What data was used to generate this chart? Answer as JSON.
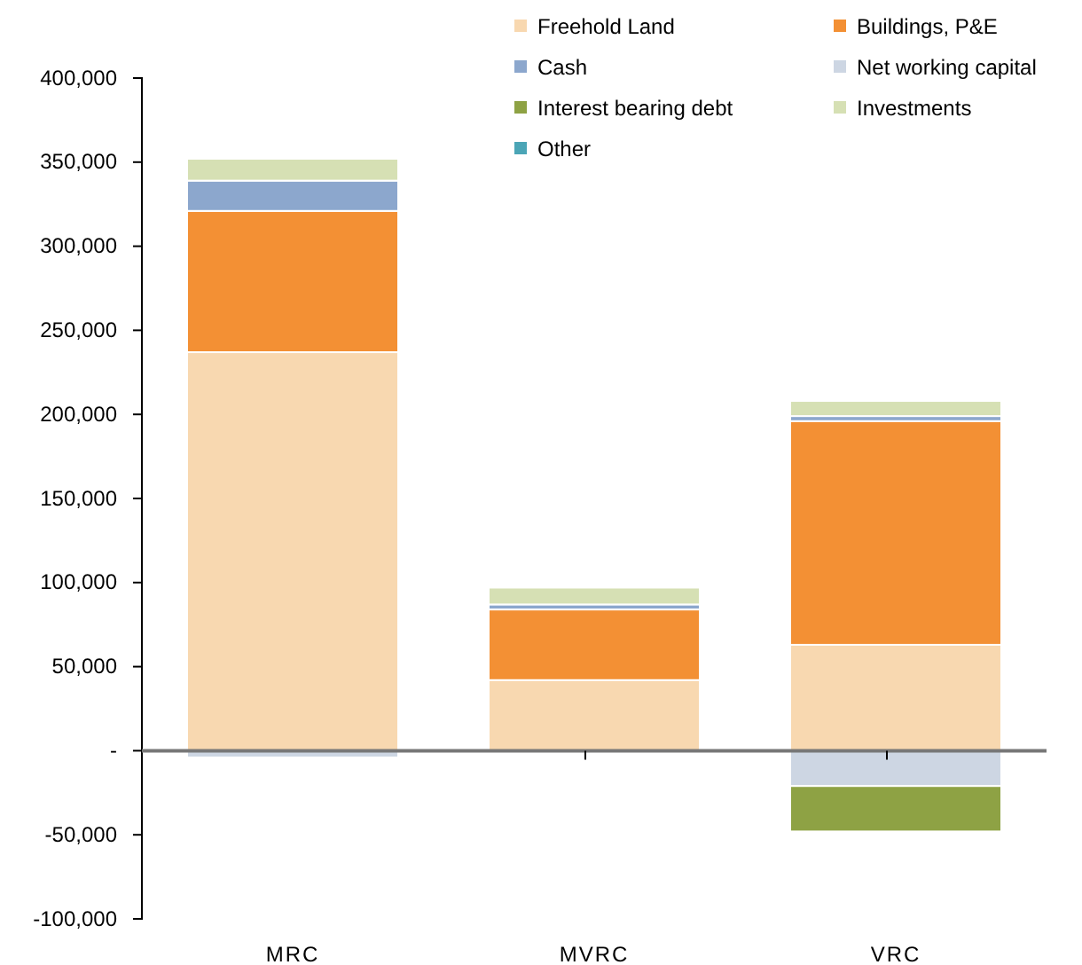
{
  "chart_data": {
    "type": "bar",
    "stacked": true,
    "categories": [
      "MRC",
      "MVRC",
      "VRC"
    ],
    "series": [
      {
        "name": "Freehold Land",
        "color": "#f8d8b0",
        "values": [
          237000,
          42000,
          63000
        ]
      },
      {
        "name": "Buildings, P&E",
        "color": "#f39034",
        "values": [
          84000,
          42000,
          133000
        ]
      },
      {
        "name": "Cash",
        "color": "#8ca7cd",
        "values": [
          18000,
          3000,
          3000
        ]
      },
      {
        "name": "Net working capital",
        "color": "#cdd6e3",
        "values": [
          -4000,
          0,
          -21000
        ]
      },
      {
        "name": "Interest bearing debt",
        "color": "#8ea244",
        "values": [
          0,
          0,
          -27000
        ]
      },
      {
        "name": "Investments",
        "color": "#d6e0b4",
        "values": [
          13000,
          10000,
          9000
        ]
      },
      {
        "name": "Other",
        "color": "#4ba5b6",
        "values": [
          0,
          0,
          0
        ]
      }
    ],
    "ylim": [
      -100000,
      400000
    ],
    "yticks": [
      {
        "value": -100000,
        "label": "-100,000"
      },
      {
        "value": -50000,
        "label": "-50,000"
      },
      {
        "value": 0,
        "label": "-"
      },
      {
        "value": 50000,
        "label": "50,000"
      },
      {
        "value": 100000,
        "label": "100,000"
      },
      {
        "value": 150000,
        "label": "150,000"
      },
      {
        "value": 200000,
        "label": "200,000"
      },
      {
        "value": 250000,
        "label": "250,000"
      },
      {
        "value": 300000,
        "label": "300,000"
      },
      {
        "value": 350000,
        "label": "350,000"
      },
      {
        "value": 400000,
        "label": "400,000"
      }
    ],
    "legend": "top right"
  }
}
